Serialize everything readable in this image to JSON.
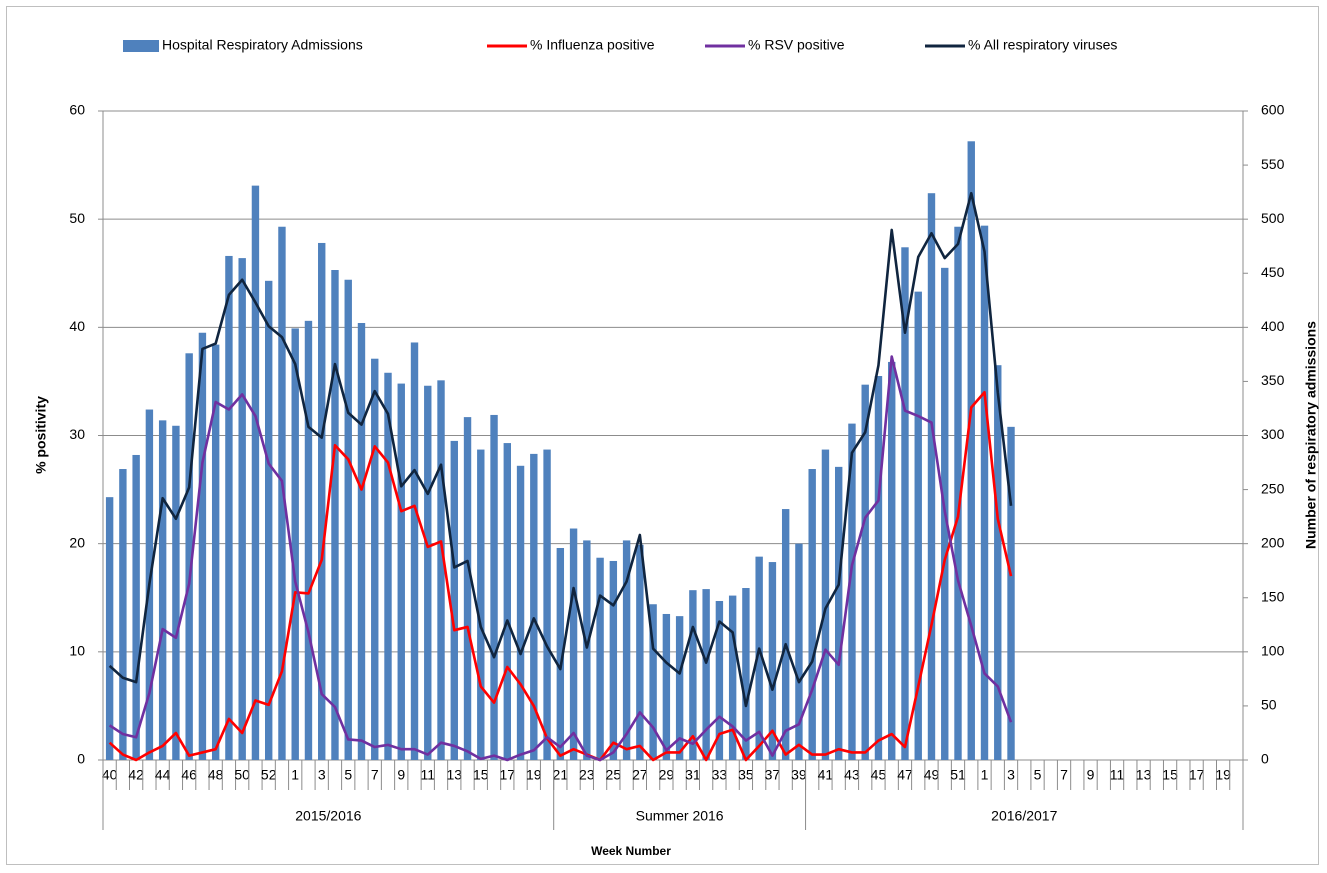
{
  "chart_data": {
    "type": "combo",
    "x_label": "Week Number",
    "y_label": "% positivity",
    "y2_label": "Number of respiratory admissions",
    "legend": "top",
    "grid": true,
    "ylim": [
      0,
      60
    ],
    "yticks": [
      0,
      10,
      20,
      30,
      40,
      50,
      60
    ],
    "y2lim": [
      0,
      600
    ],
    "y2ticks": [
      0,
      50,
      100,
      150,
      200,
      250,
      300,
      350,
      400,
      450,
      500,
      550,
      600
    ],
    "categories": [
      "40",
      null,
      "42",
      null,
      "44",
      null,
      "46",
      null,
      "48",
      null,
      "50",
      null,
      "52",
      null,
      "1",
      null,
      "3",
      null,
      "5",
      null,
      "7",
      null,
      "9",
      null,
      "11",
      null,
      "13",
      null,
      "15",
      null,
      "17",
      null,
      "19",
      null,
      "21",
      null,
      "23",
      null,
      "25",
      null,
      "27",
      null,
      "29",
      null,
      "31",
      null,
      "33",
      null,
      "35",
      null,
      "37",
      null,
      "39",
      null,
      "41",
      null,
      "43",
      null,
      "45",
      null,
      "47",
      null,
      "49",
      null,
      "51",
      null,
      "1",
      null,
      "3",
      null,
      "5",
      null,
      "7",
      null,
      "9",
      null,
      "11",
      null,
      "13",
      null,
      "15",
      null,
      "17",
      null,
      "19",
      null
    ],
    "category_groups": [
      {
        "label": "2015/2016",
        "size": 34
      },
      {
        "label": "Summer 2016",
        "size": 19
      },
      {
        "label": "2016/2017",
        "size": 33
      }
    ],
    "series": [
      {
        "name": "Hospital Respiratory Admissions",
        "type": "bar",
        "axis": "y2",
        "color": "#4f81bd",
        "values": [
          243,
          269,
          282,
          324,
          314,
          309,
          376,
          395,
          384,
          466,
          464,
          531,
          443,
          493,
          399,
          406,
          478,
          453,
          444,
          404,
          371,
          358,
          348,
          386,
          346,
          351,
          295,
          317,
          287,
          319,
          293,
          272,
          283,
          287,
          196,
          214,
          203,
          187,
          184,
          203,
          199,
          144,
          135,
          133,
          157,
          158,
          147,
          152,
          159,
          188,
          183,
          232,
          200,
          269,
          287,
          271,
          311,
          347,
          355,
          368,
          474,
          433,
          524,
          455,
          493,
          572,
          494,
          365,
          308,
          null,
          null,
          null,
          null,
          null,
          null,
          null,
          null,
          null,
          null,
          null,
          null,
          null,
          null,
          null,
          null,
          null
        ]
      },
      {
        "name": "% Influenza positive",
        "type": "line",
        "color": "#ff0000",
        "values": [
          1.6,
          0.5,
          0.0,
          0.7,
          1.3,
          2.5,
          0.4,
          0.7,
          1.0,
          3.8,
          2.5,
          5.5,
          5.1,
          8.2,
          15.5,
          15.4,
          18.5,
          29.1,
          27.8,
          25.0,
          29.0,
          27.5,
          23.0,
          23.5,
          19.7,
          20.2,
          12.0,
          12.3,
          6.8,
          5.3,
          8.6,
          7.0,
          5.0,
          2.0,
          0.4,
          1.0,
          0.5,
          0.0,
          1.6,
          1.0,
          1.3,
          0.0,
          0.7,
          0.7,
          2.2,
          0.0,
          2.4,
          2.8,
          0.0,
          1.3,
          2.7,
          0.5,
          1.4,
          0.5,
          0.5,
          1.0,
          0.7,
          0.7,
          1.8,
          2.4,
          1.2,
          6.8,
          12.5,
          18.5,
          22.5,
          32.6,
          34.0,
          22.3,
          17.0,
          null,
          null,
          null,
          null,
          null,
          null,
          null,
          null,
          null,
          null,
          null,
          null,
          null,
          null,
          null,
          null,
          null
        ]
      },
      {
        "name": "% RSV positive",
        "type": "line",
        "color": "#7030a0",
        "values": [
          3.2,
          2.4,
          2.1,
          6.2,
          12.1,
          11.3,
          16.3,
          27.5,
          33.1,
          32.4,
          33.8,
          31.8,
          27.4,
          25.8,
          16.5,
          11.8,
          6.1,
          4.9,
          1.9,
          1.8,
          1.2,
          1.4,
          1.0,
          1.0,
          0.5,
          1.6,
          1.3,
          0.8,
          0.1,
          0.4,
          0.0,
          0.5,
          0.9,
          2.1,
          1.2,
          2.5,
          0.4,
          0.0,
          0.7,
          2.4,
          4.4,
          3.0,
          0.9,
          2.0,
          1.5,
          2.8,
          4.0,
          3.1,
          1.8,
          2.6,
          0.4,
          2.7,
          3.3,
          6.5,
          10.2,
          8.8,
          18.0,
          22.4,
          24.0,
          37.3,
          32.3,
          31.8,
          31.2,
          23.0,
          16.6,
          12.4,
          8.0,
          6.8,
          3.5,
          null,
          null,
          null,
          null,
          null,
          null,
          null,
          null,
          null,
          null,
          null,
          null,
          null,
          null,
          null,
          null,
          null
        ]
      },
      {
        "name": "% All respiratory viruses",
        "type": "line",
        "color": "#10253f",
        "values": [
          8.7,
          7.6,
          7.2,
          16.3,
          24.2,
          22.3,
          25.2,
          38.0,
          38.5,
          43.0,
          44.4,
          42.3,
          40.1,
          39.1,
          36.6,
          30.8,
          29.8,
          36.6,
          32.1,
          31.0,
          34.1,
          32.0,
          25.3,
          26.8,
          24.6,
          27.3,
          17.8,
          18.4,
          12.3,
          9.5,
          12.9,
          9.8,
          13.1,
          10.5,
          8.4,
          15.9,
          10.4,
          15.2,
          14.3,
          16.5,
          20.8,
          10.3,
          9.0,
          8.0,
          12.3,
          9.0,
          12.8,
          11.8,
          5.0,
          10.3,
          6.5,
          10.7,
          7.2,
          9.1,
          14.0,
          16.2,
          28.4,
          30.3,
          36.5,
          49.0,
          39.5,
          46.5,
          48.7,
          46.4,
          47.7,
          52.4,
          47.0,
          34.0,
          23.5,
          null,
          null,
          null,
          null,
          null,
          null,
          null,
          null,
          null,
          null,
          null,
          null,
          null,
          null,
          null,
          null,
          null
        ]
      }
    ]
  }
}
